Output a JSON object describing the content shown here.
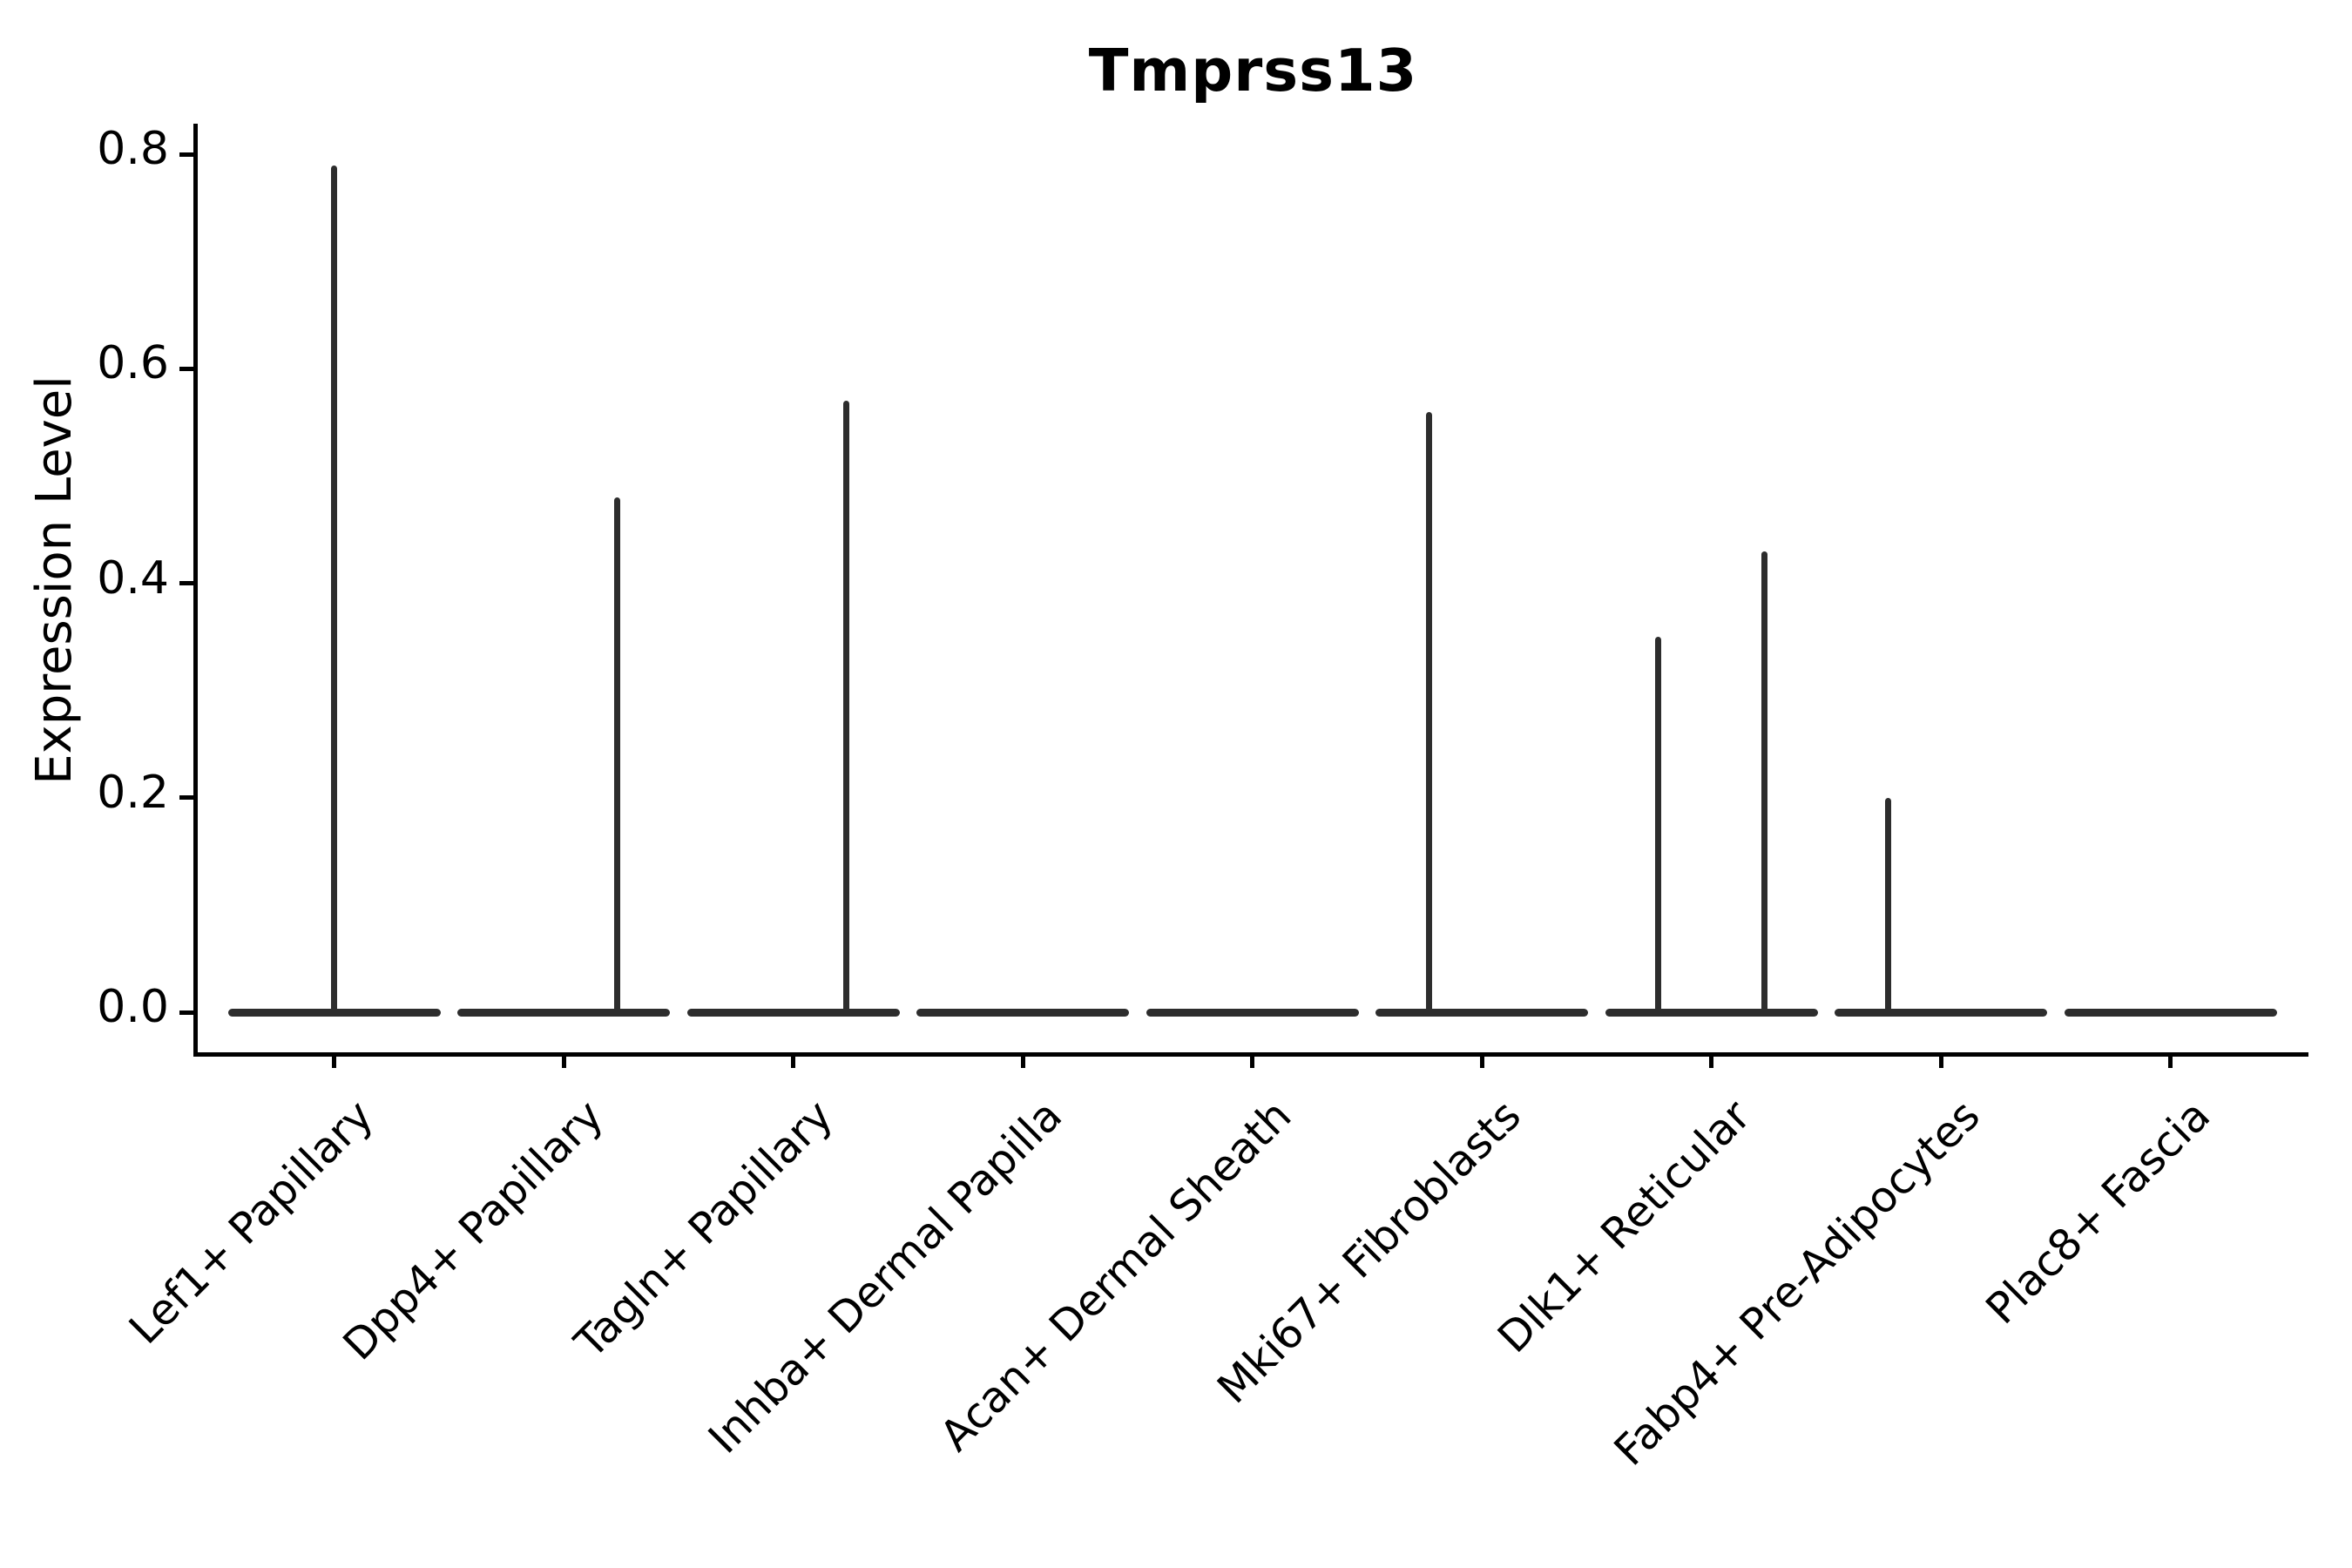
{
  "figure": {
    "background_color": "#ffffff",
    "text_color": "#000000",
    "violin_color": "#2d2d2d"
  },
  "chart_data": {
    "type": "violin",
    "title": "Tmprss13",
    "xlabel": "",
    "ylabel": "Expression Level",
    "ylim": [
      -0.037,
      0.83
    ],
    "grid": false,
    "legend": "none",
    "yticks": [
      {
        "value": 0.0,
        "label": "0.0"
      },
      {
        "value": 0.2,
        "label": "0.2"
      },
      {
        "value": 0.4,
        "label": "0.4"
      },
      {
        "value": 0.6,
        "label": "0.6"
      },
      {
        "value": 0.8,
        "label": "0.8"
      }
    ],
    "categories": [
      "Lef1+ Papillary",
      "Dpp4+ Papillary",
      "Tagln+ Papillary",
      "Inhba+ Dermal Papilla",
      "Acan+ Dermal Sheath",
      "Mki67+ Fibroblasts",
      "Dlk1+ Reticular",
      "Fabp4+ Pre-Adipocytes",
      "Plac8+ Fascia"
    ],
    "violins": [
      {
        "category": "Lef1+ Papillary",
        "baseline_value": 0.0,
        "max_expression": 0.79,
        "spikes": [
          {
            "pos": 0.5,
            "peak": 0.79
          }
        ]
      },
      {
        "category": "Dpp4+ Papillary",
        "baseline_value": 0.0,
        "max_expression": 0.48,
        "spikes": [
          {
            "pos": 0.75,
            "peak": 0.48
          }
        ]
      },
      {
        "category": "Tagln+ Papillary",
        "baseline_value": 0.0,
        "max_expression": 0.57,
        "spikes": [
          {
            "pos": 0.75,
            "peak": 0.57
          }
        ]
      },
      {
        "category": "Inhba+ Dermal Papilla",
        "baseline_value": 0.0,
        "max_expression": 0.0,
        "spikes": []
      },
      {
        "category": "Acan+ Dermal Sheath",
        "baseline_value": 0.0,
        "max_expression": 0.0,
        "spikes": []
      },
      {
        "category": "Mki67+ Fibroblasts",
        "baseline_value": 0.0,
        "max_expression": 0.56,
        "spikes": [
          {
            "pos": 0.25,
            "peak": 0.56
          }
        ]
      },
      {
        "category": "Dlk1+ Reticular",
        "baseline_value": 0.0,
        "max_expression": 0.43,
        "spikes": [
          {
            "pos": 0.25,
            "peak": 0.35
          },
          {
            "pos": 0.75,
            "peak": 0.43
          }
        ]
      },
      {
        "category": "Fabp4+ Pre-Adipocytes",
        "baseline_value": 0.0,
        "max_expression": 0.2,
        "spikes": [
          {
            "pos": 0.25,
            "peak": 0.2
          }
        ]
      },
      {
        "category": "Plac8+ Fascia",
        "baseline_value": 0.0,
        "max_expression": 0.0,
        "spikes": []
      }
    ]
  }
}
